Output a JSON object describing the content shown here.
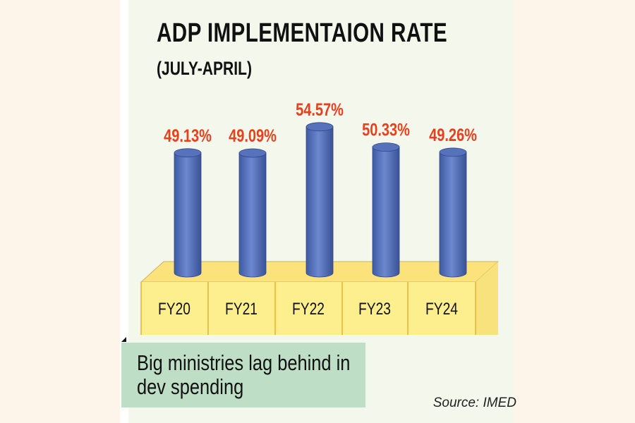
{
  "chart_data": {
    "type": "bar",
    "title": "ADP IMPLEMENTAION RATE",
    "subtitle": "(JULY-APRIL)",
    "categories": [
      "FY20",
      "FY21",
      "FY22",
      "FY23",
      "FY24"
    ],
    "values": [
      49.13,
      49.09,
      54.57,
      50.33,
      49.26
    ],
    "data_labels": [
      "49.13%",
      "49.09%",
      "54.57%",
      "50.33%",
      "49.26%"
    ],
    "unit": "%",
    "style": "3d-cylinder",
    "grid": false,
    "colors": {
      "bar": "#5b78c0",
      "label": "#e8401c",
      "base": "#fbe98a",
      "caption_bg": "#bedfc6"
    }
  },
  "caption": "Big ministries lag behind in dev spending",
  "source": "Source: IMED"
}
